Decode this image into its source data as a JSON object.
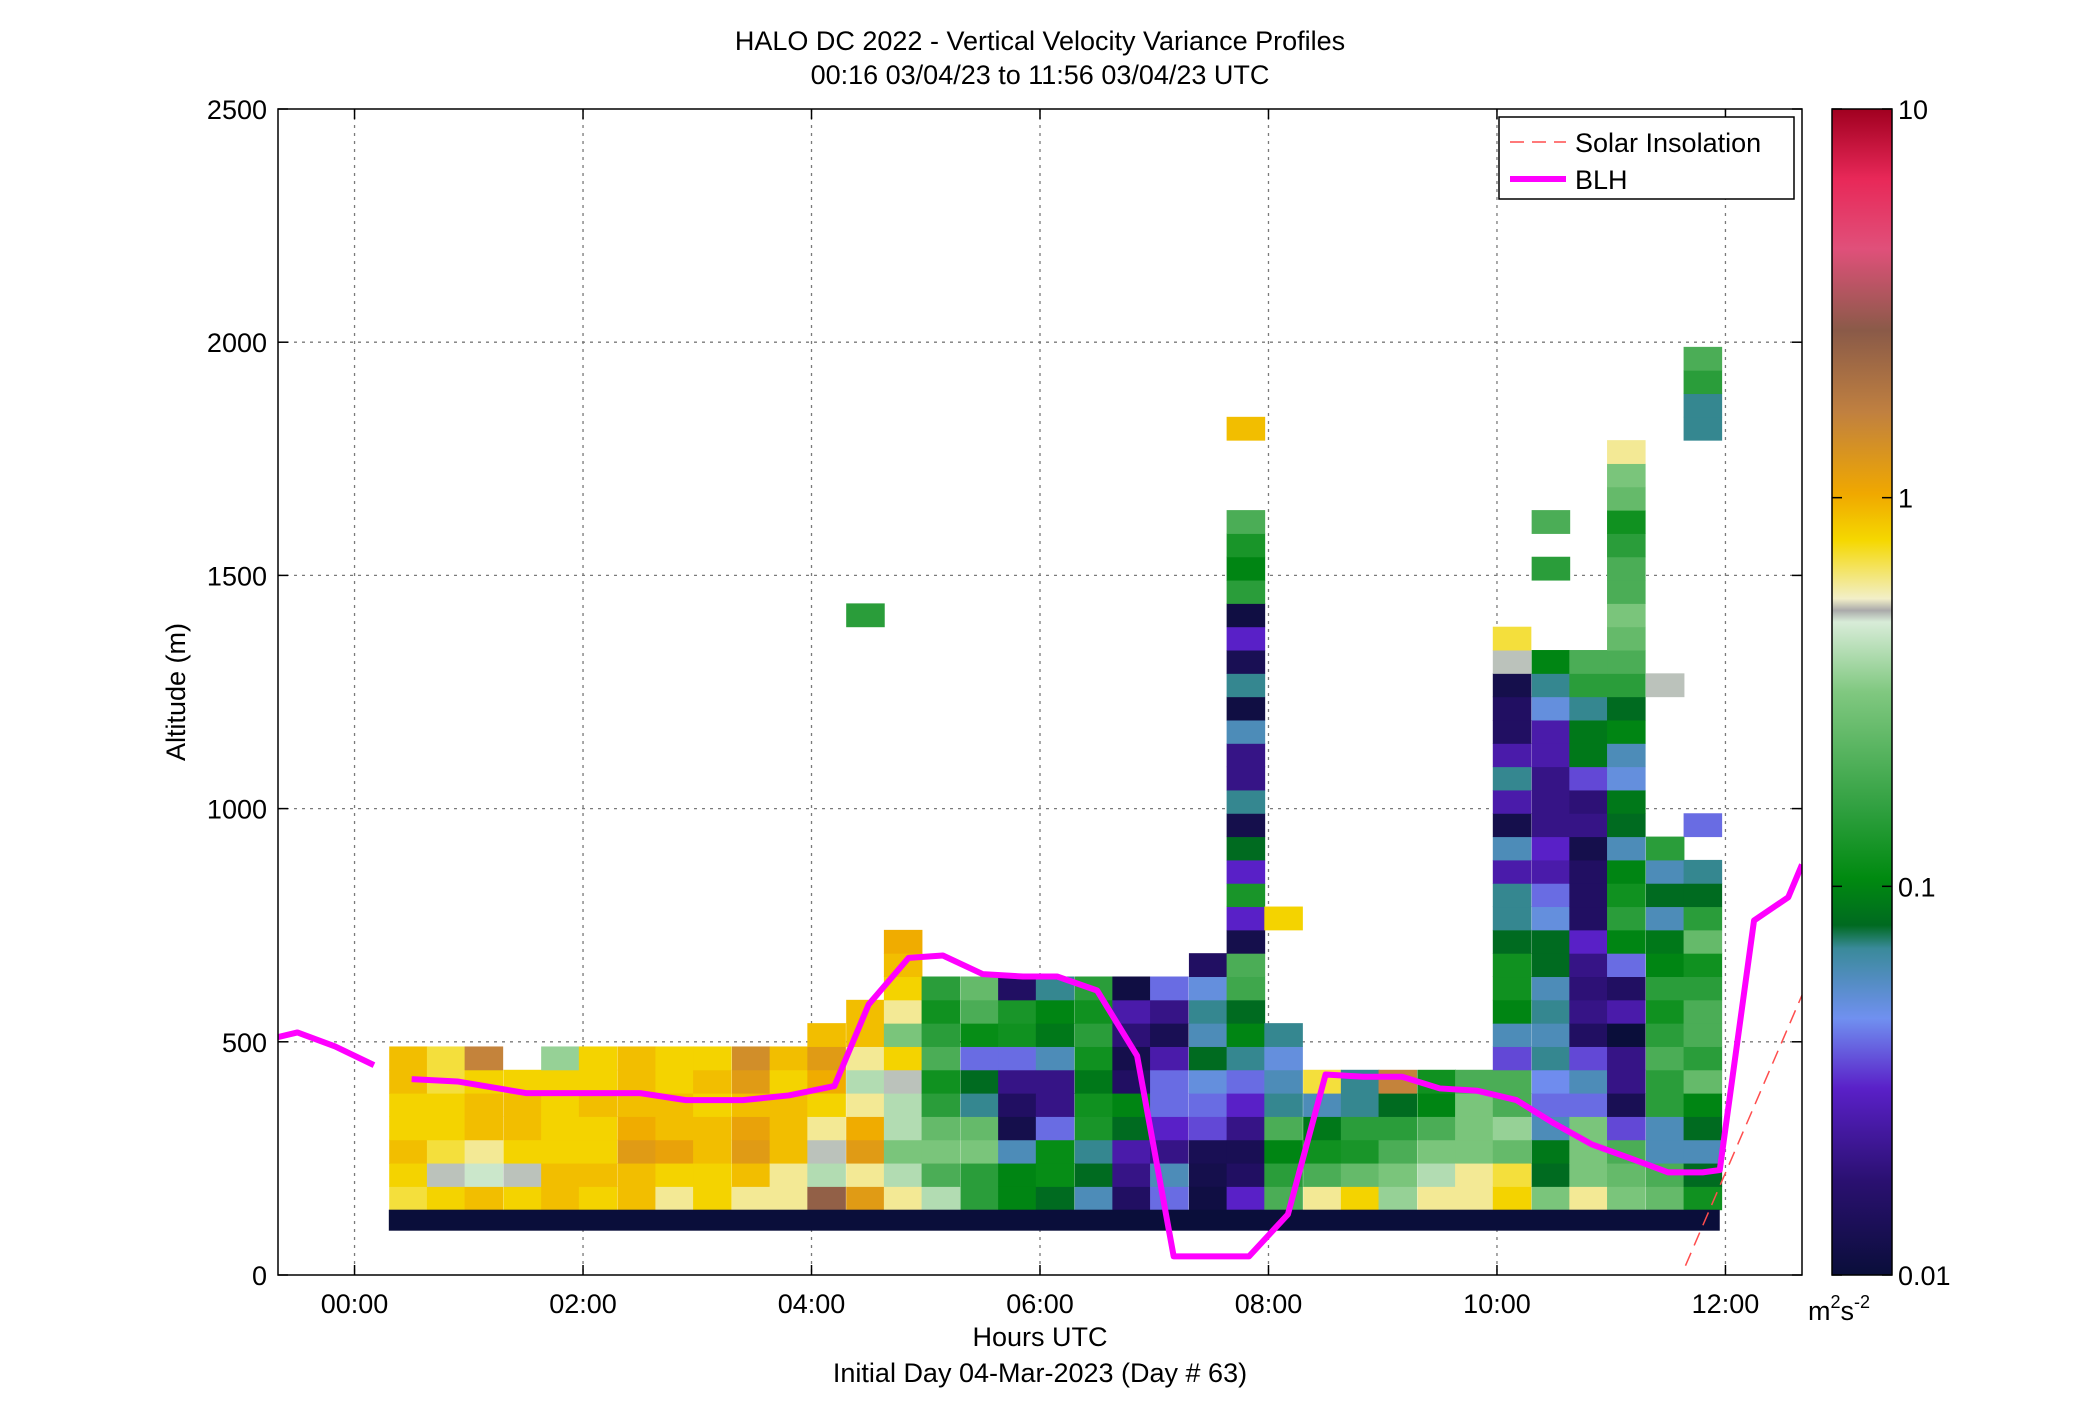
{
  "chart_data": {
    "type": "heatmap",
    "title": "HALO DC 2022 - Vertical Velocity Variance Profiles",
    "subtitle": "00:16 03/04/23 to 11:56 03/04/23  UTC",
    "xlabel": "Hours UTC",
    "xlabel2": "Initial Day 04-Mar-2023 (Day # 63)",
    "ylabel": "Altitude (m)",
    "xlim": [
      -0.67,
      12.67
    ],
    "ylim": [
      0,
      2500
    ],
    "x_ticks": [
      0,
      2,
      4,
      6,
      8,
      10,
      12
    ],
    "x_tick_labels": [
      "00:00",
      "02:00",
      "04:00",
      "06:00",
      "08:00",
      "10:00",
      "12:00"
    ],
    "y_ticks": [
      0,
      500,
      1000,
      1500,
      2000,
      2500
    ],
    "y_tick_labels": [
      "0",
      "500",
      "1000",
      "1500",
      "2000",
      "2500"
    ],
    "grid": true,
    "legend": {
      "position": "top-right",
      "entries": [
        "Solar Insolation",
        "BLH"
      ]
    },
    "colorbar": {
      "scale": "log",
      "range": [
        0.01,
        10
      ],
      "tick_values": [
        0.01,
        0.1,
        1,
        10
      ],
      "tick_labels": [
        "0.01",
        "0.1",
        "1",
        "10"
      ],
      "unit_base": "m",
      "unit_sup1": "2",
      "unit_mid": "s",
      "unit_sup2": "-2"
    },
    "colors": {
      "blh": "#ff00ff",
      "solar": "#ff4d4d",
      "bottom_band": "#0a0e3a"
    },
    "heatmap": {
      "time_step_hours": 0.333,
      "altitude_step_m": 50,
      "bottom_band": {
        "x": [
          0.3,
          11.95
        ],
        "y": [
          95,
          140
        ]
      },
      "columns": [
        {
          "t": 0.47,
          "v": [
            0.7,
            0.8,
            0.9,
            0.8,
            0.8,
            0.9,
            0.9
          ]
        },
        {
          "t": 0.8,
          "v": [
            0.8,
            0.5,
            0.7,
            0.8,
            0.8,
            0.7,
            0.7
          ]
        },
        {
          "t": 1.13,
          "v": [
            0.9,
            0.45,
            0.6,
            0.9,
            0.9,
            0.8,
            1.6
          ]
        },
        {
          "t": 1.47,
          "v": [
            0.8,
            0.5,
            0.8,
            0.9,
            0.9,
            0.8
          ]
        },
        {
          "t": 1.8,
          "v": [
            0.9,
            0.9,
            0.8,
            0.8,
            0.8,
            0.8,
            0.35
          ]
        },
        {
          "t": 2.13,
          "v": [
            0.8,
            0.9,
            0.8,
            0.8,
            0.9,
            0.8,
            0.8
          ]
        },
        {
          "t": 2.47,
          "v": [
            0.9,
            0.9,
            1.2,
            1.0,
            0.9,
            0.9,
            0.9
          ]
        },
        {
          "t": 2.8,
          "v": [
            0.6,
            0.8,
            1.1,
            0.9,
            0.9,
            0.8,
            0.8
          ]
        },
        {
          "t": 3.13,
          "v": [
            0.8,
            0.8,
            0.9,
            0.9,
            0.8,
            0.9,
            0.8
          ]
        },
        {
          "t": 3.47,
          "v": [
            0.6,
            0.9,
            1.2,
            1.1,
            0.9,
            1.2,
            1.4
          ]
        },
        {
          "t": 3.8,
          "v": [
            0.6,
            0.6,
            0.9,
            0.9,
            0.9,
            0.8,
            0.9
          ]
        },
        {
          "t": 4.13,
          "v": [
            2.5,
            0.4,
            0.5,
            0.6,
            0.8,
            1.0,
            1.2,
            0.9
          ]
        },
        {
          "t": 4.47,
          "v": [
            1.2,
            0.6,
            1.2,
            1.0,
            0.6,
            0.4,
            0.6,
            0.9,
            0.9,
            0,
            0,
            0,
            0,
            0,
            0,
            0,
            0,
            0,
            0,
            0,
            0,
            0,
            0,
            0,
            0,
            0.15
          ]
        },
        {
          "t": 4.8,
          "v": [
            0.6,
            0.4,
            0.3,
            0.4,
            0.4,
            0.5,
            0.8,
            0.3,
            0.6,
            0.8,
            0.9,
            1.0
          ]
        },
        {
          "t": 5.13,
          "v": [
            0.4,
            0.2,
            0.3,
            0.25,
            0.15,
            0.12,
            0.2,
            0.15,
            0.12,
            0.15
          ]
        },
        {
          "t": 5.47,
          "v": [
            0.15,
            0.15,
            0.3,
            0.25,
            0.07,
            0.08,
            0.04,
            0.11,
            0.2,
            0.25
          ]
        },
        {
          "t": 5.8,
          "v": [
            0.1,
            0.1,
            0.06,
            0.012,
            0.015,
            0.02,
            0.04,
            0.12,
            0.13,
            0.015
          ]
        },
        {
          "t": 6.13,
          "v": [
            0.08,
            0.11,
            0.11,
            0.04,
            0.02,
            0.02,
            0.06,
            0.09,
            0.1,
            0.07
          ]
        },
        {
          "t": 6.47,
          "v": [
            0.06,
            0.08,
            0.07,
            0.13,
            0.12,
            0.09,
            0.12,
            0.15,
            0.12,
            0.15
          ]
        },
        {
          "t": 6.8,
          "v": [
            0.015,
            0.02,
            0.025,
            0.08,
            0.1,
            0.015,
            0.012,
            0.018,
            0.025,
            0.011
          ]
        },
        {
          "t": 7.13,
          "v": [
            0.04,
            0.06,
            0.02,
            0.03,
            0.04,
            0.04,
            0.025,
            0.013,
            0.02,
            0.04
          ]
        },
        {
          "t": 7.47,
          "v": [
            0.011,
            0.012,
            0.013,
            0.035,
            0.04,
            0.05,
            0.08,
            0.06,
            0.07,
            0.05,
            0.015
          ]
        },
        {
          "t": 7.8,
          "v": [
            0.03,
            0.015,
            0.013,
            0.02,
            0.03,
            0.04,
            0.07,
            0.1,
            0.08,
            0.18,
            0.2,
            0.012,
            0.03,
            0.13,
            0.03,
            0.08,
            0.012,
            0.07,
            0.02,
            0.02,
            0.06,
            0.011,
            0.07,
            0.013,
            0.03,
            0.011,
            0.15,
            0.1,
            0.13,
            0.2,
            0,
            0,
            0,
            0.9
          ]
        },
        {
          "t": 8.13,
          "v": [
            0.2,
            0.15,
            0.1,
            0.2,
            0.07,
            0.06,
            0.05,
            0.07,
            0,
            0,
            0,
            0,
            0.8
          ]
        },
        {
          "t": 8.47,
          "v": [
            0.6,
            0.2,
            0.12,
            0.09,
            0.06,
            0.7
          ]
        },
        {
          "t": 8.8,
          "v": [
            0.8,
            0.25,
            0.13,
            0.15,
            0.07,
            0.07
          ]
        },
        {
          "t": 9.13,
          "v": [
            0.35,
            0.3,
            0.2,
            0.15,
            0.08,
            1.6
          ]
        },
        {
          "t": 9.47,
          "v": [
            0.6,
            0.4,
            0.3,
            0.2,
            0.1,
            0.12
          ]
        },
        {
          "t": 9.8,
          "v": [
            0.6,
            0.6,
            0.3,
            0.3,
            0.3,
            0.2
          ]
        },
        {
          "t": 10.13,
          "v": [
            0.8,
            0.7,
            0.25,
            0.35,
            0.2,
            0.2,
            0.035,
            0.06,
            0.1,
            0.12,
            0.12,
            0.08,
            0.07,
            0.07,
            0.025,
            0.06,
            0.012,
            0.025,
            0.07,
            0.025,
            0.015,
            0.015,
            0.012,
            0.5,
            0.7
          ]
        },
        {
          "t": 10.47,
          "v": [
            0.3,
            0.08,
            0.09,
            0.06,
            0.04,
            0.045,
            0.07,
            0.06,
            0.07,
            0.06,
            0.08,
            0.08,
            0.05,
            0.04,
            0.025,
            0.03,
            0.02,
            0.02,
            0.02,
            0.025,
            0.025,
            0.05,
            0.07,
            0.1,
            0,
            0,
            0,
            0.15,
            0,
            0.2
          ]
        },
        {
          "t": 10.8,
          "v": [
            0.6,
            0.3,
            0.3,
            0.3,
            0.04,
            0.06,
            0.035,
            0.015,
            0.02,
            0.018,
            0.02,
            0.03,
            0.015,
            0.015,
            0.015,
            0.012,
            0.02,
            0.018,
            0.035,
            0.09,
            0.09,
            0.07,
            0.15,
            0.2
          ]
        },
        {
          "t": 11.13,
          "v": [
            0.3,
            0.25,
            0.2,
            0.035,
            0.013,
            0.02,
            0.02,
            0.01,
            0.025,
            0.015,
            0.04,
            0.1,
            0.15,
            0.12,
            0.1,
            0.06,
            0.08,
            0.09,
            0.05,
            0.06,
            0.1,
            0.08,
            0.15,
            0.2,
            0.25,
            0.3,
            0.2,
            0.2,
            0.15,
            0.12,
            0.25,
            0.3,
            0.6
          ]
        },
        {
          "t": 11.47,
          "v": [
            0.25,
            0.2,
            0.06,
            0.06,
            0.15,
            0.15,
            0.2,
            0.15,
            0.12,
            0.15,
            0.1,
            0.09,
            0.06,
            0.08,
            0.06,
            0.15,
            0,
            0,
            0,
            0,
            0,
            0,
            0.5
          ]
        },
        {
          "t": 11.8,
          "v": [
            0.12,
            0.08,
            0.06,
            0.08,
            0.1,
            0.25,
            0.15,
            0.2,
            0.2,
            0.15,
            0.12,
            0.25,
            0.15,
            0.08,
            0.07,
            0,
            0.04,
            0,
            0,
            0,
            0,
            0,
            0,
            0,
            0,
            0,
            0,
            0,
            0,
            0,
            0,
            0,
            0,
            0.07,
            0.07,
            0.15,
            0.2
          ]
        }
      ]
    },
    "series": [
      {
        "name": "BLH",
        "segments": [
          {
            "x": [
              -0.67,
              -0.5,
              -0.17,
              0.17
            ],
            "y": [
              510,
              520,
              490,
              450
            ]
          },
          {
            "x": [
              0.5,
              0.9,
              1.5,
              2.0,
              2.5,
              2.9,
              3.4,
              3.8,
              4.2,
              4.5,
              4.85,
              5.15,
              5.5,
              5.85,
              6.15,
              6.5,
              6.85,
              7.17,
              7.83,
              8.17,
              8.5,
              8.83,
              9.17,
              9.5,
              9.83,
              10.17,
              10.5,
              10.83,
              11.17,
              11.5,
              11.8,
              11.95,
              12.25,
              12.55,
              12.67
            ]
          },
          {
            "y": [
              420,
              415,
              390,
              390,
              390,
              375,
              375,
              385,
              405,
              580,
              680,
              685,
              645,
              640,
              640,
              610,
              470,
              40,
              40,
              130,
              430,
              425,
              425,
              400,
              395,
              375,
              325,
              280,
              250,
              220,
              220,
              225,
              760,
              810,
              880
            ]
          }
        ]
      },
      {
        "name": "Solar Insolation",
        "x": [
          11.65,
          12.67
        ],
        "y": [
          20,
          600
        ]
      }
    ]
  }
}
